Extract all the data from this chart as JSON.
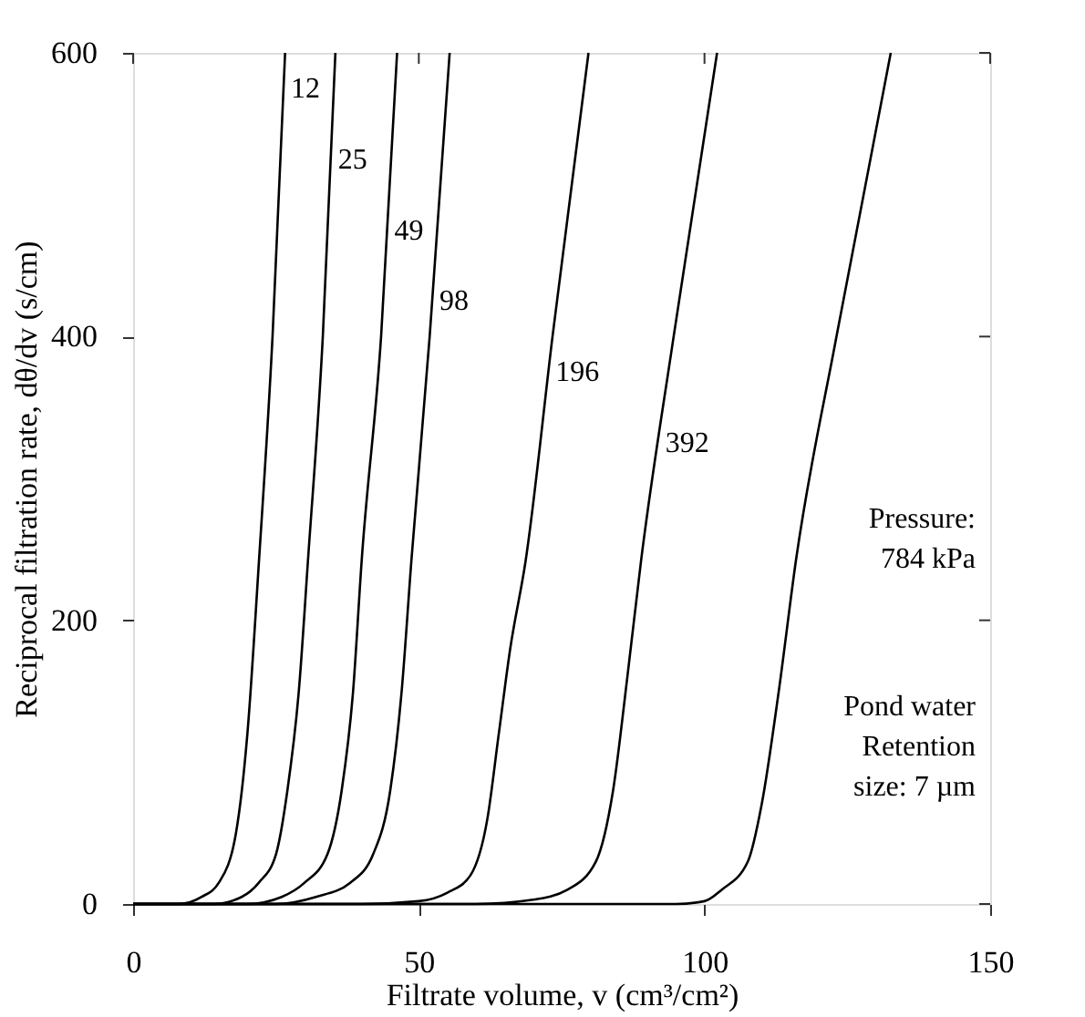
{
  "chart_data": {
    "type": "line",
    "xlabel": "Filtrate volume, v  (cm³/cm²)",
    "ylabel": "Reciprocal filtration rate, dθ/dv  (s/cm)",
    "xlim": [
      0,
      150
    ],
    "xticks": [
      0,
      50,
      100,
      150
    ],
    "ylim": [
      0,
      600
    ],
    "yticks": [
      0,
      200,
      400,
      600
    ],
    "grid": false,
    "legend": false,
    "marker": "none",
    "line_style": "solid",
    "annotations": [
      "Pressure:\n784 kPa",
      "Pond water\nRetention\nsize: 7 µm"
    ],
    "series": [
      {
        "name": "12",
        "color": "#000000",
        "x": [
          0,
          8,
          12,
          15,
          18,
          20,
          22,
          24.4,
          26.6
        ],
        "values": [
          0,
          0,
          5,
          15,
          50,
          120,
          240,
          400,
          600
        ]
      },
      {
        "name": "25",
        "color": "#000000",
        "x": [
          0,
          14,
          19,
          22,
          25,
          27,
          29,
          30.6,
          33.2,
          35.4
        ],
        "values": [
          0,
          0,
          5,
          15,
          35,
          80,
          150,
          242,
          400,
          600
        ]
      },
      {
        "name": "49",
        "color": "#000000",
        "x": [
          0,
          20,
          26,
          30,
          34,
          36.5,
          38.5,
          40,
          43.4,
          46.2
        ],
        "values": [
          0,
          0,
          5,
          15,
          35,
          80,
          150,
          242,
          400,
          600
        ]
      },
      {
        "name": "98",
        "color": "#000000",
        "x": [
          0,
          25,
          32,
          38,
          42,
          45,
          47,
          48.7,
          51.9,
          55.4
        ],
        "values": [
          0,
          0,
          5,
          15,
          35,
          80,
          150,
          242,
          400,
          600
        ]
      },
      {
        "name": "196",
        "color": "#000000",
        "x": [
          0,
          40,
          50,
          55,
          59,
          62,
          64,
          66,
          68.7,
          73.4,
          79.7
        ],
        "values": [
          0,
          0,
          2,
          8,
          20,
          60,
          120,
          180,
          242,
          400,
          600
        ]
      },
      {
        "name": "392",
        "color": "#000000",
        "x": [
          0,
          60,
          70,
          76,
          81,
          84,
          86.5,
          88.9,
          94.6,
          102.2
        ],
        "values": [
          0,
          0,
          3,
          10,
          30,
          80,
          160,
          242,
          400,
          600
        ]
      },
      {
        "color": "#000000",
        "x": [
          0,
          95,
          100,
          103,
          107.6,
          110,
          113,
          116,
          123.1,
          132.6
        ],
        "values": [
          0,
          0,
          2,
          10,
          30,
          70,
          150,
          242,
          400,
          600
        ]
      }
    ]
  }
}
